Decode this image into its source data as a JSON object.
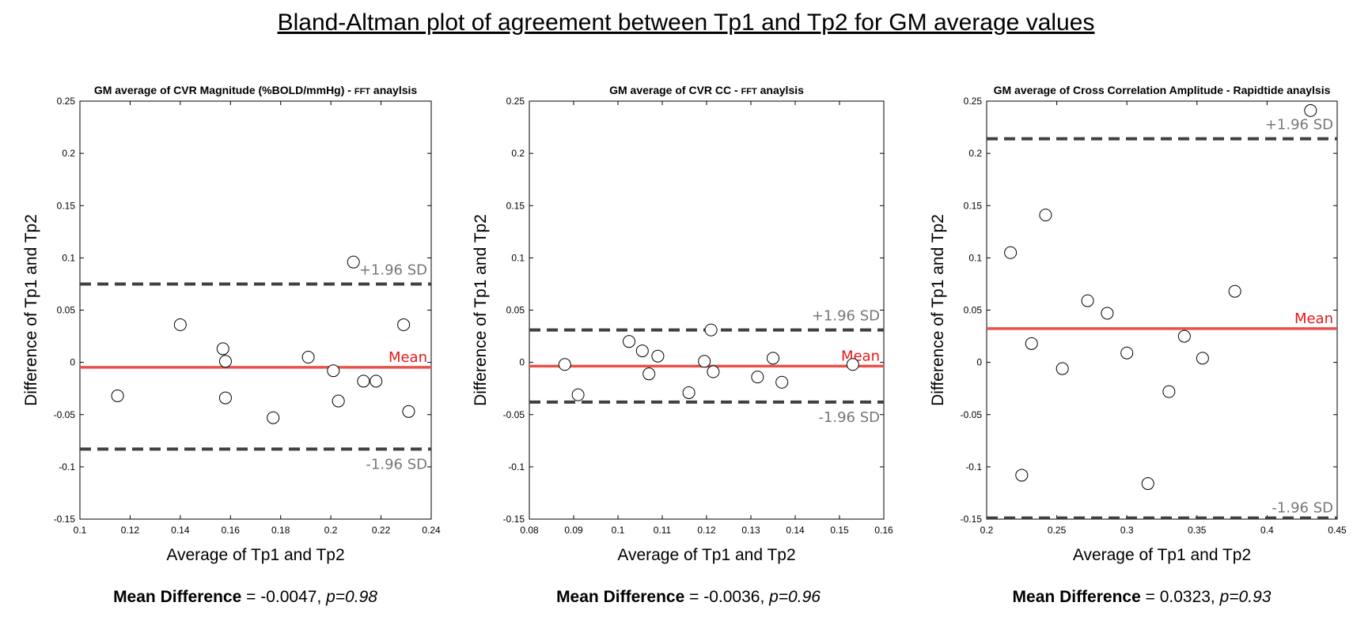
{
  "main_title": "Bland-Altman plot of agreement between Tp1 and Tp2 for GM average values",
  "colors": {
    "mean": "#e8524a",
    "mean_text": "#e8161b",
    "sd_line": "#404040",
    "sd_text": "#777777",
    "axis": "#000000"
  },
  "chart_data": [
    {
      "type": "scatter",
      "title_main": "GM average of CVR Magnitude (%BOLD/mmHg)  -  ",
      "title_small": "FFT",
      "title_end": " anaylsis",
      "xlabel": "Average of Tp1 and Tp2",
      "ylabel": "Difference of Tp1 and Tp2",
      "xlim": [
        0.1,
        0.24
      ],
      "ylim": [
        -0.15,
        0.25
      ],
      "xticks": [
        0.1,
        0.12,
        0.14,
        0.16,
        0.18,
        0.2,
        0.22,
        0.24
      ],
      "xtick_labels": [
        "0.1",
        "0.12",
        "0.14",
        "0.16",
        "0.18",
        "0.2",
        "0.22",
        "0.24"
      ],
      "yticks": [
        -0.15,
        -0.1,
        -0.05,
        0,
        0.05,
        0.1,
        0.15,
        0.2,
        0.25
      ],
      "ytick_labels": [
        "-0.15",
        "-0.1",
        "-0.05",
        "0",
        "0.05",
        "0.1",
        "0.15",
        "0.2",
        "0.25"
      ],
      "mean": -0.0047,
      "upper_sd": 0.075,
      "lower_sd": -0.083,
      "upper_label": "+1.96 SD",
      "lower_label": "-1.96 SD",
      "mean_label": "Mean",
      "x": [
        0.115,
        0.14,
        0.157,
        0.158,
        0.158,
        0.177,
        0.191,
        0.201,
        0.203,
        0.209,
        0.213,
        0.218,
        0.229,
        0.231
      ],
      "y": [
        -0.032,
        0.036,
        0.013,
        0.001,
        -0.034,
        -0.053,
        0.005,
        -0.008,
        -0.037,
        0.096,
        -0.018,
        -0.018,
        0.036,
        -0.047
      ],
      "summary": {
        "label": "Mean Difference",
        "value": " = -0.0047, ",
        "p": "p=0.98"
      }
    },
    {
      "type": "scatter",
      "title_main": "GM average of CVR CC  -  ",
      "title_small": "FFT",
      "title_end": " anaylsis",
      "xlabel": "Average of Tp1 and Tp2",
      "ylabel": "Difference of Tp1 and Tp2",
      "xlim": [
        0.08,
        0.16
      ],
      "ylim": [
        -0.15,
        0.25
      ],
      "xticks": [
        0.08,
        0.09,
        0.1,
        0.11,
        0.12,
        0.13,
        0.14,
        0.15,
        0.16
      ],
      "xtick_labels": [
        "0.08",
        "0.09",
        "0.1",
        "0.11",
        "0.12",
        "0.13",
        "0.14",
        "0.15",
        "0.16"
      ],
      "yticks": [
        -0.15,
        -0.1,
        -0.05,
        0,
        0.05,
        0.1,
        0.15,
        0.2,
        0.25
      ],
      "ytick_labels": [
        "-0.15",
        "-0.1",
        "-0.05",
        "0",
        "0.05",
        "0.1",
        "0.15",
        "0.2",
        "0.25"
      ],
      "mean": -0.0036,
      "upper_sd": 0.031,
      "lower_sd": -0.038,
      "upper_label": "+1.96 SD",
      "lower_label": "-1.96 SD",
      "mean_label": "Mean",
      "x": [
        0.088,
        0.091,
        0.1025,
        0.1055,
        0.107,
        0.109,
        0.116,
        0.1195,
        0.121,
        0.1215,
        0.1315,
        0.135,
        0.137,
        0.153
      ],
      "y": [
        -0.002,
        -0.031,
        0.02,
        0.011,
        -0.011,
        0.006,
        -0.029,
        0.001,
        0.031,
        -0.009,
        -0.014,
        0.004,
        -0.019,
        -0.002
      ],
      "summary": {
        "label": "Mean Difference",
        "value": " =  -0.0036, ",
        "p": "p=0.96"
      }
    },
    {
      "type": "scatter",
      "title_main": "GM average of Cross Correlation Amplitude - Rapidtide anaylsis",
      "title_small": "",
      "title_end": "",
      "xlabel": "Average of Tp1 and Tp2",
      "ylabel": "Difference of Tp1 and Tp2",
      "xlim": [
        0.2,
        0.45
      ],
      "ylim": [
        -0.15,
        0.25
      ],
      "xticks": [
        0.2,
        0.25,
        0.3,
        0.35,
        0.4,
        0.45
      ],
      "xtick_labels": [
        "0.2",
        "0.25",
        "0.3",
        "0.35",
        "0.4",
        "0.45"
      ],
      "yticks": [
        -0.15,
        -0.1,
        -0.05,
        0,
        0.05,
        0.1,
        0.15,
        0.2,
        0.25
      ],
      "ytick_labels": [
        "-0.15",
        "-0.1",
        "-0.05",
        "0",
        "0.05",
        "0.1",
        "0.15",
        "0.2",
        "0.25"
      ],
      "mean": 0.0323,
      "upper_sd": 0.214,
      "lower_sd": -0.149,
      "upper_label": "+1.96 SD",
      "lower_label": "-1.96 SD",
      "mean_label": "Mean",
      "x": [
        0.217,
        0.225,
        0.232,
        0.242,
        0.254,
        0.272,
        0.286,
        0.3,
        0.315,
        0.33,
        0.341,
        0.354,
        0.377,
        0.431
      ],
      "y": [
        0.105,
        -0.108,
        0.018,
        0.141,
        -0.006,
        0.059,
        0.047,
        0.009,
        -0.116,
        -0.028,
        0.025,
        0.004,
        0.068,
        0.241
      ],
      "summary": {
        "label": "Mean Difference",
        "value": " = 0.0323, ",
        "p": "p=0.93"
      }
    }
  ]
}
